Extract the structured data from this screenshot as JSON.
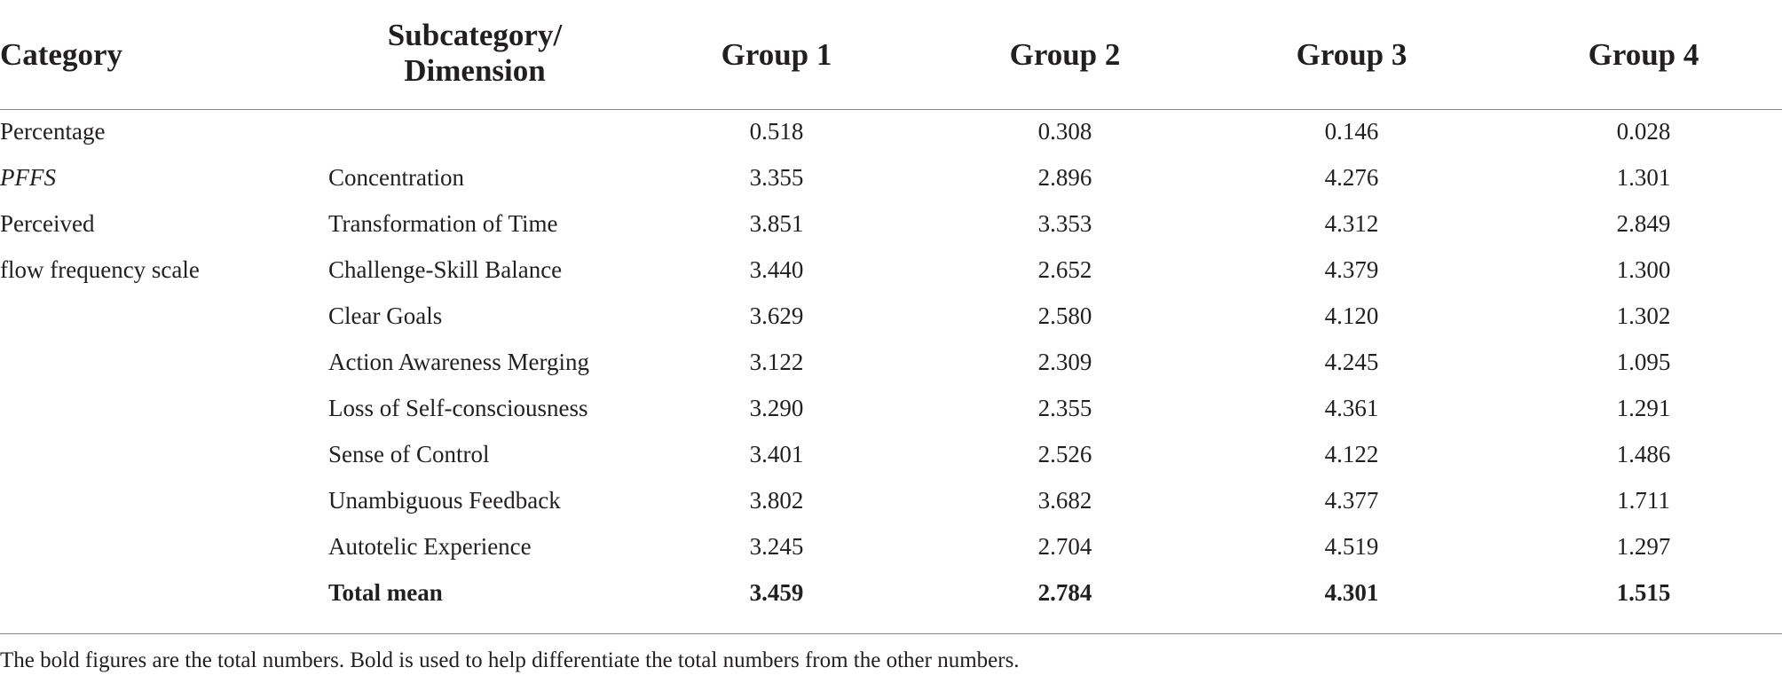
{
  "table": {
    "headers": {
      "category": "Category",
      "subcategory_line1": "Subcategory/",
      "subcategory_line2": "Dimension",
      "group1": "Group 1",
      "group2": "Group 2",
      "group3": "Group 3",
      "group4": "Group 4"
    },
    "rows": [
      {
        "category": "Percentage",
        "subcategory": "",
        "g1": "0.518",
        "g2": "0.308",
        "g3": "0.146",
        "g4": "0.028"
      },
      {
        "category": "PFFS",
        "subcategory": "Concentration",
        "g1": "3.355",
        "g2": "2.896",
        "g3": "4.276",
        "g4": "1.301"
      },
      {
        "category": "Perceived",
        "subcategory": "Transformation of Time",
        "g1": "3.851",
        "g2": "3.353",
        "g3": "4.312",
        "g4": "2.849"
      },
      {
        "category": "flow frequency scale",
        "subcategory": "Challenge-Skill Balance",
        "g1": "3.440",
        "g2": "2.652",
        "g3": "4.379",
        "g4": "1.300"
      },
      {
        "category": "",
        "subcategory": "Clear Goals",
        "g1": "3.629",
        "g2": "2.580",
        "g3": "4.120",
        "g4": "1.302"
      },
      {
        "category": "",
        "subcategory": "Action Awareness Merging",
        "g1": "3.122",
        "g2": "2.309",
        "g3": "4.245",
        "g4": "1.095"
      },
      {
        "category": "",
        "subcategory": "Loss of Self-consciousness",
        "g1": "3.290",
        "g2": "2.355",
        "g3": "4.361",
        "g4": "1.291"
      },
      {
        "category": "",
        "subcategory": "Sense of Control",
        "g1": "3.401",
        "g2": "2.526",
        "g3": "4.122",
        "g4": "1.486"
      },
      {
        "category": "",
        "subcategory": "Unambiguous Feedback",
        "g1": "3.802",
        "g2": "3.682",
        "g3": "4.377",
        "g4": "1.711"
      },
      {
        "category": "",
        "subcategory": "Autotelic Experience",
        "g1": "3.245",
        "g2": "2.704",
        "g3": "4.519",
        "g4": "1.297"
      },
      {
        "category": "",
        "subcategory": "Total mean",
        "g1": "3.459",
        "g2": "2.784",
        "g3": "4.301",
        "g4": "1.515"
      }
    ],
    "footnote": "The bold figures are the total numbers. Bold is used to help differentiate the total numbers from the other numbers."
  }
}
